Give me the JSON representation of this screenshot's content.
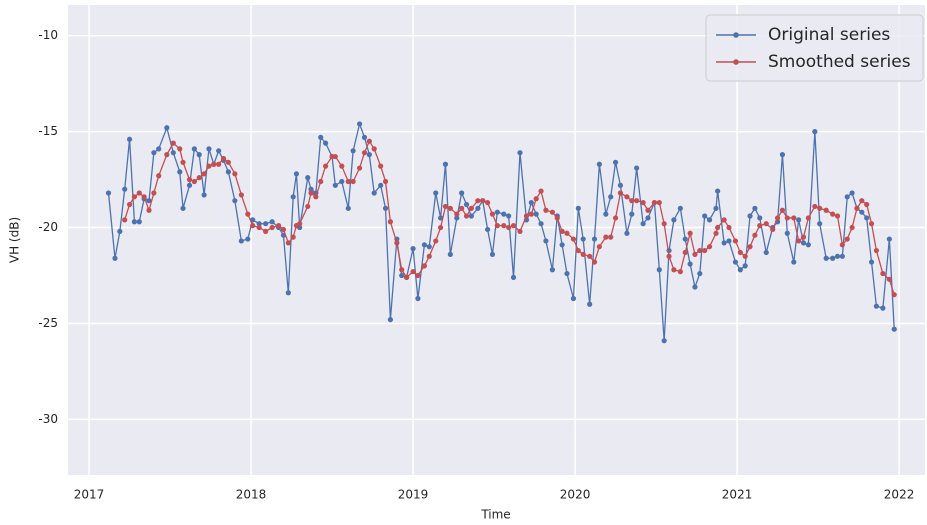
{
  "chart_data": {
    "type": "line",
    "xlabel": "Time",
    "ylabel": "VH (dB)",
    "xlim": [
      2016.87,
      2022.16
    ],
    "xticks": [
      2017,
      2018,
      2019,
      2020,
      2021,
      2022
    ],
    "ylim": [
      -32.9,
      -8.4
    ],
    "yticks": [
      -10,
      -15,
      -20,
      -25,
      -30
    ],
    "grid": true,
    "legend": "upper right",
    "x": [
      2017.12,
      2017.16,
      2017.19,
      2017.22,
      2017.25,
      2017.28,
      2017.31,
      2017.34,
      2017.37,
      2017.4,
      2017.43,
      2017.48,
      2017.52,
      2017.56,
      2017.58,
      2017.62,
      2017.65,
      2017.68,
      2017.71,
      2017.74,
      2017.77,
      2017.8,
      2017.83,
      2017.86,
      2017.9,
      2017.94,
      2017.98,
      2018.01,
      2018.05,
      2018.09,
      2018.13,
      2018.17,
      2018.2,
      2018.23,
      2018.26,
      2018.28,
      2018.3,
      2018.35,
      2018.37,
      2018.4,
      2018.43,
      2018.46,
      2018.5,
      2018.52,
      2018.56,
      2018.6,
      2018.63,
      2018.67,
      2018.7,
      2018.73,
      2018.76,
      2018.8,
      2018.83,
      2018.86,
      2018.9,
      2018.93,
      2018.96,
      2019.0,
      2019.03,
      2019.07,
      2019.1,
      2019.14,
      2019.17,
      2019.2,
      2019.23,
      2019.27,
      2019.3,
      2019.33,
      2019.36,
      2019.4,
      2019.43,
      2019.46,
      2019.49,
      2019.52,
      2019.56,
      2019.59,
      2019.62,
      2019.66,
      2019.7,
      2019.73,
      2019.76,
      2019.79,
      2019.82,
      2019.86,
      2019.89,
      2019.92,
      2019.95,
      2019.99,
      2020.02,
      2020.05,
      2020.09,
      2020.12,
      2020.15,
      2020.19,
      2020.22,
      2020.25,
      2020.28,
      2020.32,
      2020.35,
      2020.38,
      2020.42,
      2020.45,
      2020.49,
      2020.52,
      2020.55,
      2020.58,
      2020.61,
      2020.65,
      2020.68,
      2020.71,
      2020.74,
      2020.77,
      2020.8,
      2020.83,
      2020.87,
      2020.88,
      2020.92,
      2020.95,
      2020.99,
      2021.02,
      2021.05,
      2021.08,
      2021.11,
      2021.14,
      2021.18,
      2021.22,
      2021.25,
      2021.28,
      2021.31,
      2021.35,
      2021.38,
      2021.41,
      2021.44,
      2021.48,
      2021.51,
      2021.55,
      2021.59,
      2021.62,
      2021.65,
      2021.68,
      2021.71,
      2021.74,
      2021.77,
      2021.8,
      2021.83,
      2021.86,
      2021.9,
      2021.94,
      2021.97
    ],
    "series": [
      {
        "name": "Original series",
        "color": "#4c72b0",
        "values": [
          -18.2,
          -21.6,
          -20.2,
          -18.0,
          -15.4,
          -19.7,
          -19.7,
          -18.5,
          -18.6,
          -16.1,
          -15.9,
          -14.8,
          -16.1,
          -17.1,
          -19.0,
          -17.8,
          -15.9,
          -16.2,
          -18.3,
          -15.9,
          -16.7,
          -16.0,
          -16.5,
          -17.1,
          -18.6,
          -20.7,
          -20.6,
          -19.6,
          -19.8,
          -19.8,
          -19.7,
          -20.0,
          -20.4,
          -23.4,
          -18.4,
          -17.2,
          -20.0,
          -17.4,
          -18.0,
          -18.2,
          -15.3,
          -15.6,
          -16.3,
          -17.8,
          -17.6,
          -19.0,
          -16.0,
          -14.6,
          -15.3,
          -16.2,
          -18.2,
          -17.8,
          -19.0,
          -24.8,
          -20.6,
          -22.5,
          -22.6,
          -21.1,
          -23.7,
          -20.9,
          -21.0,
          -18.2,
          -19.5,
          -16.7,
          -21.4,
          -19.5,
          -18.2,
          -18.8,
          -19.4,
          -19.0,
          -18.6,
          -20.1,
          -21.4,
          -19.2,
          -19.3,
          -19.4,
          -22.6,
          -16.1,
          -19.6,
          -18.7,
          -19.3,
          -19.8,
          -20.7,
          -22.2,
          -19.4,
          -20.9,
          -22.4,
          -23.7,
          -19.0,
          -20.6,
          -24.0,
          -20.6,
          -16.7,
          -19.3,
          -18.4,
          -16.6,
          -17.8,
          -20.3,
          -19.3,
          -16.9,
          -19.8,
          -19.5,
          -18.7,
          -22.2,
          -25.9,
          -21.2,
          -19.6,
          -19.0,
          -20.6,
          -21.9,
          -23.1,
          -22.4,
          -19.4,
          -19.6,
          -19.0,
          -18.1,
          -20.8,
          -20.7,
          -21.8,
          -22.2,
          -22.0,
          -19.4,
          -19.0,
          -19.5,
          -21.3,
          -20.0,
          -19.7,
          -16.2,
          -20.3,
          -21.8,
          -19.6,
          -20.8,
          -20.9,
          -15.0,
          -19.8,
          -21.6,
          -21.6,
          -21.5,
          -21.5,
          -18.4,
          -18.2,
          -19.0,
          -19.2,
          -19.5,
          -21.8,
          -24.1,
          -24.2,
          -20.6,
          -25.3
        ]
      },
      {
        "name": "Smoothed series",
        "color": "#c44e52",
        "values": [
          null,
          null,
          null,
          -19.6,
          -18.8,
          -18.4,
          -18.2,
          -18.4,
          -19.1,
          -18.2,
          -17.3,
          -16.2,
          -15.6,
          -15.9,
          -16.6,
          -17.5,
          -17.6,
          -17.4,
          -17.2,
          -16.8,
          -16.7,
          -16.7,
          -16.4,
          -16.6,
          -17.2,
          -18.3,
          -19.3,
          -19.9,
          -20.0,
          -20.2,
          -20.0,
          -19.9,
          -20.1,
          -20.8,
          -20.5,
          -19.9,
          -19.8,
          -18.9,
          -18.2,
          -18.4,
          -17.6,
          -16.8,
          -16.3,
          -16.3,
          -16.8,
          -17.6,
          -17.6,
          -16.9,
          -16.1,
          -15.5,
          -15.9,
          -16.8,
          -17.6,
          -19.7,
          -20.8,
          -22.2,
          -22.6,
          -22.3,
          -22.5,
          -22.0,
          -21.5,
          -20.7,
          -20.0,
          -18.9,
          -19.0,
          -19.3,
          -19.0,
          -19.4,
          -19.0,
          -18.6,
          -18.6,
          -18.7,
          -19.3,
          -19.9,
          -19.9,
          -20.0,
          -19.9,
          -20.2,
          -19.4,
          -19.3,
          -18.5,
          -18.1,
          -19.1,
          -19.2,
          -19.5,
          -20.2,
          -20.3,
          -20.6,
          -21.2,
          -21.4,
          -21.5,
          -21.8,
          -21.0,
          -20.5,
          -20.5,
          -19.5,
          -18.2,
          -18.4,
          -18.6,
          -18.6,
          -18.7,
          -19.1,
          -18.7,
          -18.7,
          -19.8,
          -21.5,
          -22.2,
          -22.3,
          -21.3,
          -20.3,
          -21.4,
          -21.2,
          -21.2,
          -21.0,
          -20.3,
          -20.0,
          -19.6,
          -20.0,
          -20.7,
          -21.3,
          -21.5,
          -21.0,
          -20.4,
          -19.9,
          -19.8,
          -20.1,
          -19.5,
          -19.1,
          -19.5,
          -19.5,
          -20.7,
          -20.5,
          -19.5,
          -18.9,
          -19.0,
          -19.1,
          -19.3,
          -19.4,
          -20.9,
          -20.6,
          -20.0,
          -19.0,
          -18.6,
          -18.8,
          -19.8,
          -21.2,
          -22.4,
          -22.7,
          -23.5
        ]
      }
    ]
  }
}
